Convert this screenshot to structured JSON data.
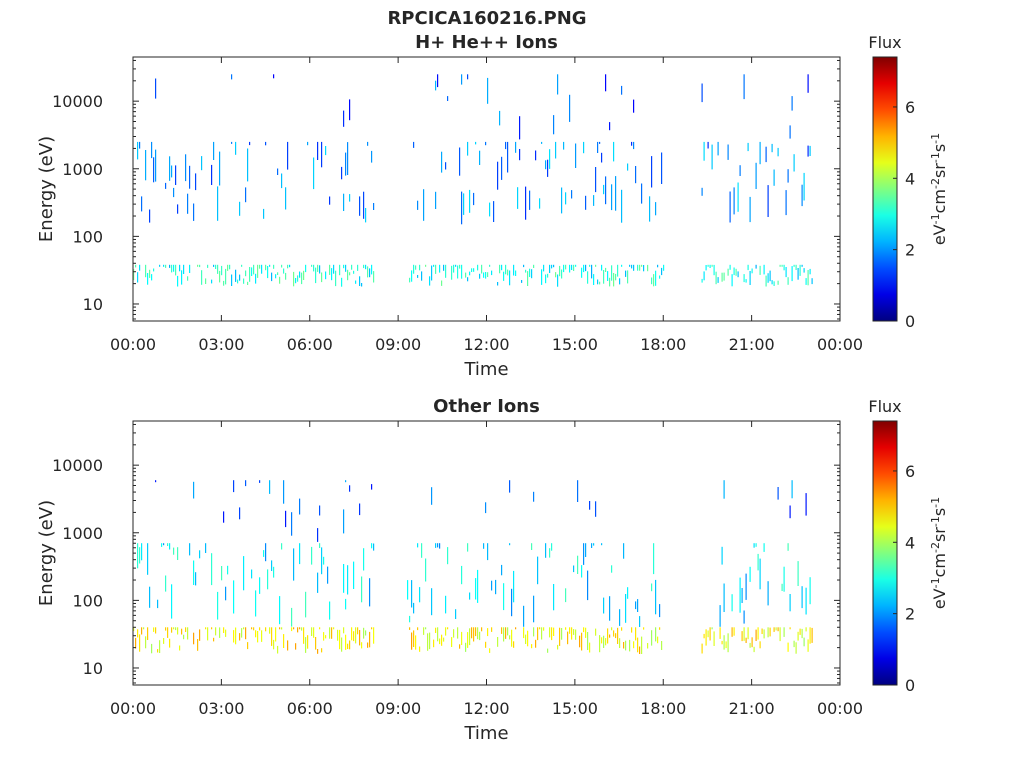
{
  "figure_title": "RPCICA160216.PNG",
  "chart_data": [
    {
      "type": "heatmap",
      "title": "H+ He++ Ions",
      "xlabel": "Time",
      "ylabel": "Energy (eV)",
      "x_ticks": [
        "00:00",
        "03:00",
        "06:00",
        "09:00",
        "12:00",
        "15:00",
        "18:00",
        "21:00",
        "00:00"
      ],
      "xlim_hours": [
        0,
        24
      ],
      "y_scale": "log",
      "ylim": [
        5.6,
        45000
      ],
      "y_ticks": [
        10,
        100,
        1000,
        10000
      ],
      "y_tick_labels": [
        "10",
        "100",
        "1000",
        "10000"
      ],
      "colorbar": {
        "title": "Flux",
        "label": "eV-1cm-2sr-1s-1",
        "range": [
          0,
          7.4
        ],
        "ticks": [
          0,
          2,
          4,
          6
        ],
        "colormap": "jet"
      },
      "data_intervals_hours": [
        [
          0.0,
          8.2
        ],
        [
          9.3,
          18.0
        ],
        [
          19.3,
          23.1
        ]
      ],
      "bands": [
        {
          "name": "low-energy band",
          "e_min": 18,
          "e_max": 38,
          "flux": 2.9
        },
        {
          "name": "main band",
          "e_min": 150,
          "e_max": 2500,
          "flux": 1.9
        },
        {
          "name": "sparse high",
          "e_min": 2500,
          "e_max": 25000,
          "flux": 1.6
        }
      ]
    },
    {
      "type": "heatmap",
      "title": "Other Ions",
      "xlabel": "Time",
      "ylabel": "Energy (eV)",
      "x_ticks": [
        "00:00",
        "03:00",
        "06:00",
        "09:00",
        "12:00",
        "15:00",
        "18:00",
        "21:00",
        "00:00"
      ],
      "xlim_hours": [
        0,
        24
      ],
      "y_scale": "log",
      "ylim": [
        5.6,
        45000
      ],
      "y_ticks": [
        10,
        100,
        1000,
        10000
      ],
      "y_tick_labels": [
        "10",
        "100",
        "1000",
        "10000"
      ],
      "colorbar": {
        "title": "Flux",
        "label": "eV-1cm-2sr-1s-1",
        "range": [
          0,
          7.4
        ],
        "ticks": [
          0,
          2,
          4,
          6
        ],
        "colormap": "jet"
      },
      "data_intervals_hours": [
        [
          0.0,
          8.2
        ],
        [
          9.3,
          18.0
        ],
        [
          19.3,
          23.1
        ]
      ],
      "bands": [
        {
          "name": "low-energy band",
          "e_min": 16,
          "e_max": 40,
          "flux": 4.6
        },
        {
          "name": "main band",
          "e_min": 40,
          "e_max": 700,
          "flux": 2.6
        },
        {
          "name": "sparse high",
          "e_min": 700,
          "e_max": 6000,
          "flux": 1.6
        }
      ]
    }
  ]
}
